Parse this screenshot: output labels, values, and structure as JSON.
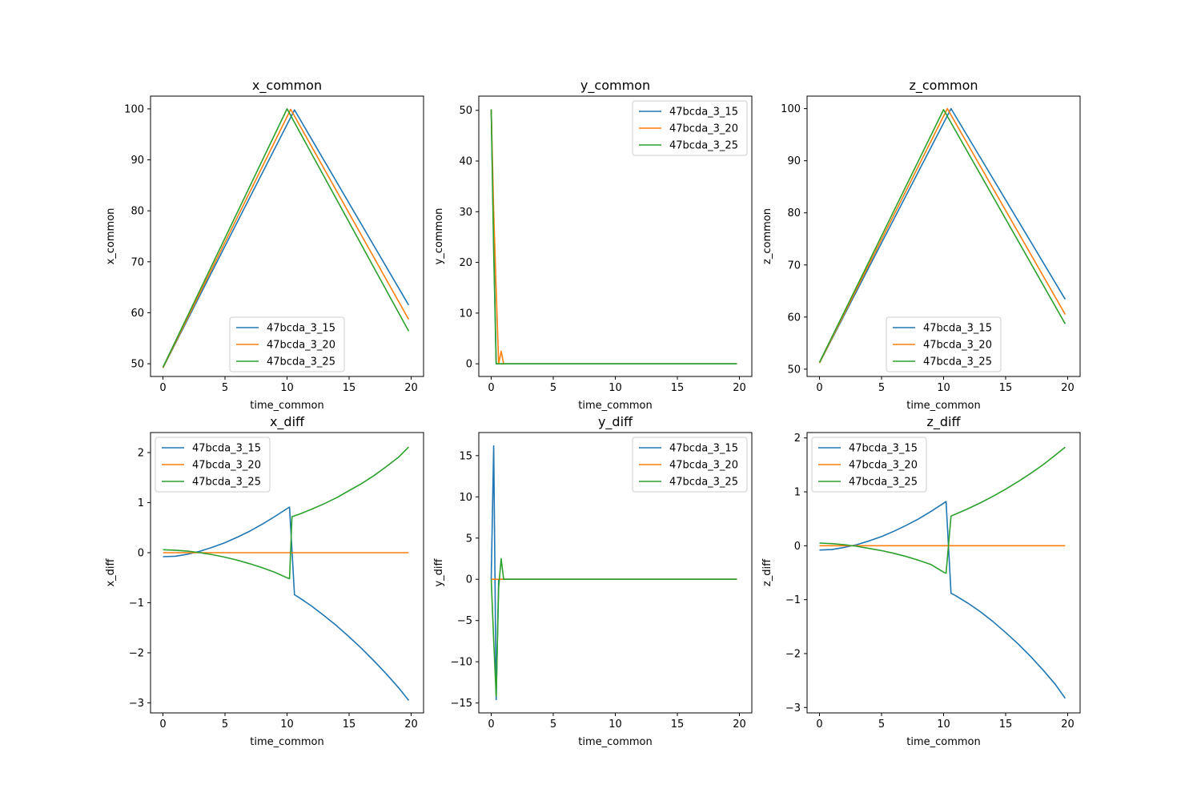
{
  "colors": {
    "s15": "#1f77b4",
    "s20": "#ff7f0e",
    "s25": "#2ca02c"
  },
  "chart_data": [
    {
      "id": "x_common",
      "type": "line",
      "title": "x_common",
      "xlabel": "time_common",
      "ylabel": "x_common",
      "xlim": [
        -1,
        21
      ],
      "ylim": [
        47.5,
        102.5
      ],
      "xticks": [
        0,
        5,
        10,
        15,
        20
      ],
      "yticks": [
        50,
        60,
        70,
        80,
        90,
        100
      ],
      "legend": "lower center",
      "series": [
        {
          "name": "47bcda_3_15",
          "color": "#1f77b4",
          "x": [
            0,
            10.6,
            19.8
          ],
          "y": [
            49.2,
            99.8,
            61.5
          ]
        },
        {
          "name": "47bcda_3_20",
          "color": "#ff7f0e",
          "x": [
            0,
            10.3,
            19.8
          ],
          "y": [
            49.2,
            99.9,
            58.7
          ]
        },
        {
          "name": "47bcda_3_25",
          "color": "#2ca02c",
          "x": [
            0,
            10.0,
            19.8
          ],
          "y": [
            49.3,
            100.0,
            56.4
          ]
        }
      ]
    },
    {
      "id": "y_common",
      "type": "line",
      "title": "y_common",
      "xlabel": "time_common",
      "ylabel": "y_common",
      "xlim": [
        -1,
        21
      ],
      "ylim": [
        -2.5,
        52.8
      ],
      "xticks": [
        0,
        5,
        10,
        15,
        20
      ],
      "yticks": [
        0,
        10,
        20,
        30,
        40,
        50
      ],
      "legend": "upper right",
      "series": [
        {
          "name": "47bcda_3_15",
          "color": "#1f77b4",
          "x": [
            0,
            0.2,
            0.4,
            0.6,
            19.8
          ],
          "y": [
            50.2,
            24,
            0,
            0,
            0
          ]
        },
        {
          "name": "47bcda_3_20",
          "color": "#ff7f0e",
          "x": [
            0,
            0.2,
            0.4,
            0.6,
            0.8,
            1.0,
            19.8
          ],
          "y": [
            50.2,
            30,
            14.6,
            0,
            2.5,
            0,
            0
          ]
        },
        {
          "name": "47bcda_3_25",
          "color": "#2ca02c",
          "x": [
            0,
            0.2,
            0.4,
            0.6,
            19.8
          ],
          "y": [
            50.2,
            22,
            0,
            0,
            0
          ]
        }
      ]
    },
    {
      "id": "z_common",
      "type": "line",
      "title": "z_common",
      "xlabel": "time_common",
      "ylabel": "z_common",
      "xlim": [
        -1,
        21
      ],
      "ylim": [
        48.6,
        102.4
      ],
      "xticks": [
        0,
        5,
        10,
        15,
        20
      ],
      "yticks": [
        50,
        60,
        70,
        80,
        90,
        100
      ],
      "legend": "lower center",
      "series": [
        {
          "name": "47bcda_3_15",
          "color": "#1f77b4",
          "x": [
            0,
            10.6,
            19.8
          ],
          "y": [
            51.2,
            100.0,
            63.4
          ]
        },
        {
          "name": "47bcda_3_20",
          "color": "#ff7f0e",
          "x": [
            0,
            10.3,
            19.8
          ],
          "y": [
            51.2,
            100.0,
            60.5
          ]
        },
        {
          "name": "47bcda_3_25",
          "color": "#2ca02c",
          "x": [
            0,
            10.0,
            19.8
          ],
          "y": [
            51.3,
            99.8,
            58.7
          ]
        }
      ]
    },
    {
      "id": "x_diff",
      "type": "line",
      "title": "x_diff",
      "xlabel": "time_common",
      "ylabel": "x_diff",
      "xlim": [
        -1,
        21
      ],
      "ylim": [
        -3.2,
        2.4
      ],
      "xticks": [
        0,
        5,
        10,
        15,
        20
      ],
      "yticks": [
        -3,
        -2,
        -1,
        0,
        1,
        2
      ],
      "legend": "upper left",
      "series": [
        {
          "name": "47bcda_3_15",
          "color": "#1f77b4",
          "x": [
            0,
            1,
            2,
            3,
            4,
            5,
            6,
            7,
            8,
            9,
            10,
            10.2,
            10.6,
            11,
            12,
            13,
            14,
            15,
            16,
            17,
            18,
            19,
            19.8
          ],
          "y": [
            -0.08,
            -0.07,
            -0.03,
            0.03,
            0.11,
            0.2,
            0.31,
            0.43,
            0.57,
            0.72,
            0.88,
            0.91,
            -0.84,
            -0.9,
            -1.07,
            -1.26,
            -1.46,
            -1.68,
            -1.91,
            -2.16,
            -2.42,
            -2.7,
            -2.95
          ]
        },
        {
          "name": "47bcda_3_20",
          "color": "#ff7f0e",
          "x": [
            0,
            19.8
          ],
          "y": [
            0,
            0
          ]
        },
        {
          "name": "47bcda_3_25",
          "color": "#2ca02c",
          "x": [
            0,
            1,
            2,
            3,
            4,
            5,
            6,
            7,
            8,
            9,
            10,
            10.2,
            10.4,
            11,
            12,
            13,
            14,
            15,
            16,
            17,
            18,
            19,
            19.8
          ],
          "y": [
            0.06,
            0.05,
            0.03,
            0.0,
            -0.04,
            -0.09,
            -0.15,
            -0.22,
            -0.3,
            -0.39,
            -0.5,
            -0.52,
            0.72,
            0.77,
            0.87,
            0.98,
            1.1,
            1.24,
            1.38,
            1.54,
            1.72,
            1.91,
            2.11
          ]
        }
      ]
    },
    {
      "id": "y_diff",
      "type": "line",
      "title": "y_diff",
      "xlabel": "time_common",
      "ylabel": "y_diff",
      "xlim": [
        -1,
        21
      ],
      "ylim": [
        -16.2,
        17.8
      ],
      "xticks": [
        0,
        5,
        10,
        15,
        20
      ],
      "yticks": [
        -15,
        -10,
        -5,
        0,
        5,
        10,
        15
      ],
      "legend": "upper right",
      "series": [
        {
          "name": "47bcda_3_15",
          "color": "#1f77b4",
          "x": [
            0,
            0.2,
            0.4,
            0.6,
            0.8,
            1.0,
            19.8
          ],
          "y": [
            0,
            16.2,
            -14.6,
            0,
            0,
            0,
            0
          ]
        },
        {
          "name": "47bcda_3_20",
          "color": "#ff7f0e",
          "x": [
            0,
            19.8
          ],
          "y": [
            0,
            0
          ]
        },
        {
          "name": "47bcda_3_25",
          "color": "#2ca02c",
          "x": [
            0,
            0.2,
            0.4,
            0.6,
            0.8,
            1.0,
            19.8
          ],
          "y": [
            0,
            -7.4,
            -14.2,
            -1.0,
            2.5,
            0,
            0
          ]
        }
      ]
    },
    {
      "id": "z_diff",
      "type": "line",
      "title": "z_diff",
      "xlabel": "time_common",
      "ylabel": "z_diff",
      "xlim": [
        -1,
        21
      ],
      "ylim": [
        -3.1,
        2.1
      ],
      "xticks": [
        0,
        5,
        10,
        15,
        20
      ],
      "yticks": [
        -3,
        -2,
        -1,
        0,
        1,
        2
      ],
      "legend": "upper left",
      "series": [
        {
          "name": "47bcda_3_15",
          "color": "#1f77b4",
          "x": [
            0,
            1,
            2,
            3,
            4,
            5,
            6,
            7,
            8,
            9,
            10,
            10.2,
            10.6,
            11,
            12,
            13,
            14,
            15,
            16,
            17,
            18,
            19,
            19.8
          ],
          "y": [
            -0.08,
            -0.07,
            -0.03,
            0.02,
            0.09,
            0.17,
            0.27,
            0.38,
            0.5,
            0.64,
            0.79,
            0.82,
            -0.88,
            -0.93,
            -1.07,
            -1.23,
            -1.41,
            -1.61,
            -1.82,
            -2.05,
            -2.3,
            -2.57,
            -2.83
          ]
        },
        {
          "name": "47bcda_3_20",
          "color": "#ff7f0e",
          "x": [
            0,
            19.8
          ],
          "y": [
            0,
            0
          ]
        },
        {
          "name": "47bcda_3_25",
          "color": "#2ca02c",
          "x": [
            0,
            1,
            2,
            3,
            4,
            5,
            6,
            7,
            8,
            9,
            10,
            10.2,
            10.6,
            11,
            12,
            13,
            14,
            15,
            16,
            17,
            18,
            19,
            19.8
          ],
          "y": [
            0.05,
            0.04,
            0.02,
            -0.01,
            -0.05,
            -0.09,
            -0.14,
            -0.2,
            -0.27,
            -0.35,
            -0.49,
            -0.51,
            0.55,
            0.59,
            0.69,
            0.8,
            0.92,
            1.05,
            1.19,
            1.34,
            1.5,
            1.68,
            1.83
          ]
        }
      ]
    }
  ]
}
